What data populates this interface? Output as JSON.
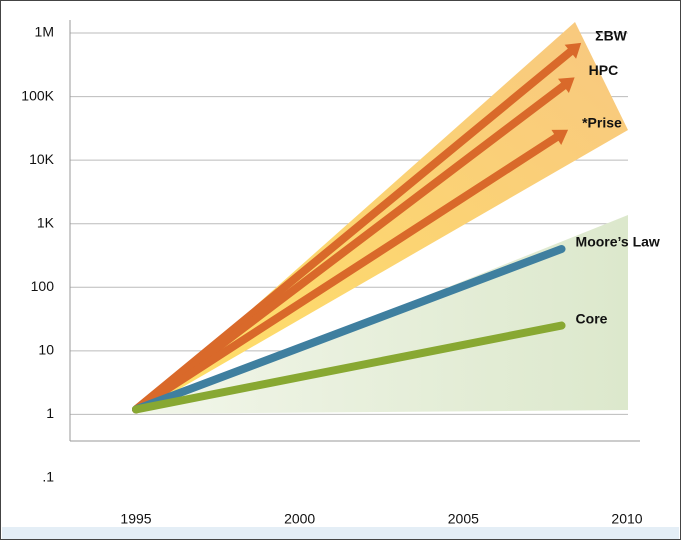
{
  "chart_data": {
    "type": "line",
    "log_y": true,
    "grid": true,
    "xlim": [
      1990.9,
      2010
    ],
    "xticks": [
      1995,
      2000,
      2005,
      2010
    ],
    "ylim": [
      0.1,
      1000000
    ],
    "yticks": [
      {
        "value": 0.1,
        "label": ".1"
      },
      1,
      10,
      100,
      {
        "value": 1000,
        "label": "1K"
      },
      {
        "value": 10000,
        "label": "10K"
      },
      {
        "value": 100000,
        "label": "100K"
      },
      {
        "value": 1000000,
        "label": "1M"
      }
    ],
    "series": [
      {
        "name": "ΣBW",
        "color": "#d9692a",
        "arrow": true,
        "x": [
          1995,
          2008.6
        ],
        "values": [
          1.2,
          700000
        ]
      },
      {
        "name": "HPC",
        "color": "#d9692a",
        "arrow": true,
        "x": [
          1995,
          2008.4
        ],
        "values": [
          1.2,
          200000
        ]
      },
      {
        "name": "*Prise",
        "color": "#d9692a",
        "arrow": true,
        "x": [
          1995,
          2008.2
        ],
        "values": [
          1.2,
          30000
        ]
      },
      {
        "name": "Moore’s Law",
        "color": "#3f7f9f",
        "arrow": false,
        "x": [
          1995,
          2008
        ],
        "values": [
          1.2,
          400
        ]
      },
      {
        "name": "Core",
        "color": "#88a832",
        "arrow": false,
        "x": [
          1995,
          2008
        ],
        "values": [
          1.2,
          25
        ]
      }
    ]
  }
}
